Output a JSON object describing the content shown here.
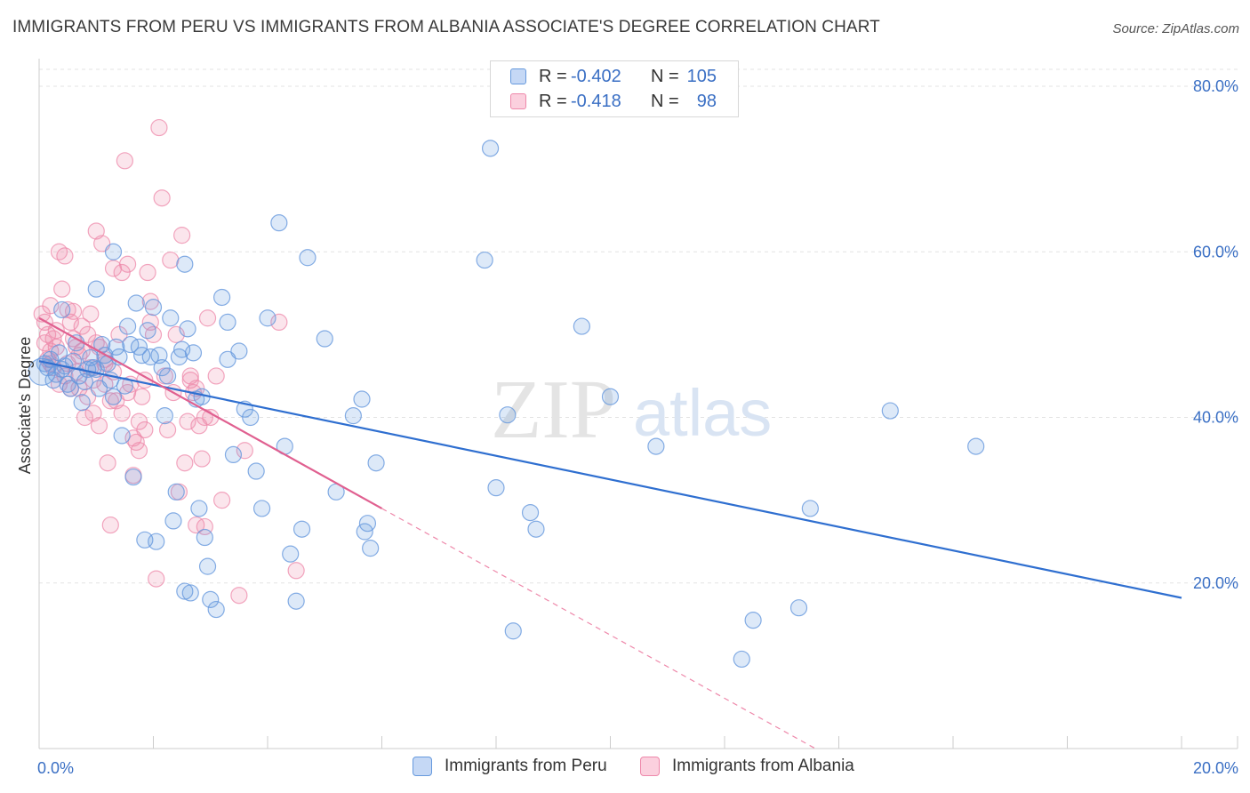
{
  "title": "IMMIGRANTS FROM PERU VS IMMIGRANTS FROM ALBANIA ASSOCIATE'S DEGREE CORRELATION CHART",
  "source": "Source: ZipAtlas.com",
  "watermark": {
    "zip": "ZIP",
    "atlas": "atlas"
  },
  "legend": {
    "r_label": "R =",
    "n_label": "N =",
    "rows": [
      {
        "series": "Immigrants from Peru",
        "r": "-0.402",
        "n": "105",
        "color": "#6699dd"
      },
      {
        "series": "Immigrants from Albania",
        "r": "-0.418",
        "n": "98",
        "color": "#ee88aa"
      }
    ]
  },
  "chart_data": {
    "type": "scatter",
    "title": "IMMIGRANTS FROM PERU VS IMMIGRANTS FROM ALBANIA ASSOCIATE'S DEGREE CORRELATION CHART",
    "xlabel": "",
    "ylabel": "Associate's Degree",
    "xlim": [
      0,
      20
    ],
    "ylim": [
      0,
      82
    ],
    "x_tick_labels": [
      "0.0%",
      "20.0%"
    ],
    "y_ticks": [
      20,
      40,
      60,
      80
    ],
    "y_tick_labels": [
      "20.0%",
      "40.0%",
      "60.0%",
      "80.0%"
    ],
    "grid": true,
    "legend_position": "top-center",
    "colors": {
      "peru": "#6699dd",
      "peru_line": "#2f6fd0",
      "albania": "#ee88aa",
      "albania_line": "#e06090"
    },
    "series": [
      {
        "name": "Immigrants from Peru",
        "trend": {
          "x": [
            0.0,
            20.0
          ],
          "y": [
            46.8,
            18.2
          ]
        },
        "points": [
          [
            0.05,
            45.5
          ],
          [
            0.1,
            46.5
          ],
          [
            0.15,
            46.0
          ],
          [
            0.2,
            47.0
          ],
          [
            0.25,
            44.5
          ],
          [
            0.3,
            45.2
          ],
          [
            0.35,
            47.8
          ],
          [
            0.4,
            45.8
          ],
          [
            0.45,
            46.2
          ],
          [
            0.5,
            44.0
          ],
          [
            0.55,
            43.5
          ],
          [
            0.6,
            46.8
          ],
          [
            0.65,
            49.0
          ],
          [
            0.7,
            45.0
          ],
          [
            0.75,
            41.8
          ],
          [
            0.8,
            44.3
          ],
          [
            0.85,
            45.8
          ],
          [
            0.9,
            47.2
          ],
          [
            0.95,
            46.0
          ],
          [
            1.0,
            45.8
          ],
          [
            1.05,
            43.5
          ],
          [
            1.1,
            48.8
          ],
          [
            1.15,
            47.5
          ],
          [
            1.2,
            46.5
          ],
          [
            1.25,
            44.5
          ],
          [
            1.3,
            42.5
          ],
          [
            1.35,
            48.5
          ],
          [
            1.4,
            47.3
          ],
          [
            1.45,
            37.8
          ],
          [
            1.5,
            43.8
          ],
          [
            1.55,
            51.0
          ],
          [
            1.6,
            48.8
          ],
          [
            1.65,
            32.8
          ],
          [
            1.7,
            53.8
          ],
          [
            1.75,
            48.5
          ],
          [
            1.8,
            47.5
          ],
          [
            1.85,
            25.2
          ],
          [
            1.9,
            50.5
          ],
          [
            1.95,
            47.3
          ],
          [
            2.0,
            53.3
          ],
          [
            2.05,
            25.0
          ],
          [
            2.1,
            47.5
          ],
          [
            2.15,
            46.0
          ],
          [
            2.2,
            40.2
          ],
          [
            2.25,
            45.0
          ],
          [
            2.3,
            52.0
          ],
          [
            2.35,
            27.5
          ],
          [
            2.4,
            31.0
          ],
          [
            2.45,
            47.3
          ],
          [
            2.5,
            48.2
          ],
          [
            2.55,
            19.0
          ],
          [
            2.6,
            50.7
          ],
          [
            2.65,
            18.8
          ],
          [
            2.7,
            47.8
          ],
          [
            2.75,
            42.2
          ],
          [
            2.8,
            29.0
          ],
          [
            2.85,
            42.5
          ],
          [
            2.9,
            25.5
          ],
          [
            2.95,
            22.0
          ],
          [
            3.0,
            18.0
          ],
          [
            3.1,
            16.8
          ],
          [
            3.2,
            54.5
          ],
          [
            3.3,
            47.0
          ],
          [
            3.4,
            35.5
          ],
          [
            3.5,
            48.0
          ],
          [
            3.6,
            41.0
          ],
          [
            3.7,
            40.0
          ],
          [
            3.8,
            33.5
          ],
          [
            3.9,
            29.0
          ],
          [
            4.0,
            52.0
          ],
          [
            4.2,
            63.5
          ],
          [
            4.3,
            36.5
          ],
          [
            4.4,
            23.5
          ],
          [
            4.5,
            17.8
          ],
          [
            4.6,
            26.5
          ],
          [
            4.7,
            59.3
          ],
          [
            5.0,
            49.5
          ],
          [
            5.2,
            31.0
          ],
          [
            5.5,
            40.2
          ],
          [
            5.65,
            42.2
          ],
          [
            5.7,
            26.2
          ],
          [
            5.8,
            24.2
          ],
          [
            5.9,
            34.5
          ],
          [
            5.75,
            27.2
          ],
          [
            7.8,
            59.0
          ],
          [
            7.9,
            72.5
          ],
          [
            8.0,
            31.5
          ],
          [
            8.2,
            40.3
          ],
          [
            8.3,
            14.2
          ],
          [
            8.6,
            28.5
          ],
          [
            8.7,
            26.5
          ],
          [
            9.5,
            51.0
          ],
          [
            10.0,
            42.5
          ],
          [
            10.8,
            36.5
          ],
          [
            12.5,
            15.5
          ],
          [
            12.3,
            10.8
          ],
          [
            13.3,
            17.0
          ],
          [
            13.5,
            29.0
          ],
          [
            14.9,
            40.8
          ],
          [
            16.4,
            36.5
          ],
          [
            0.4,
            53.0
          ],
          [
            1.0,
            55.5
          ],
          [
            1.3,
            60.0
          ],
          [
            2.55,
            58.5
          ],
          [
            3.3,
            51.5
          ]
        ]
      },
      {
        "name": "Immigrants from Albania",
        "trend": {
          "x": [
            0.0,
            6.0
          ],
          "y": [
            52.0,
            29.0
          ]
        },
        "trend_extension": {
          "x": [
            6.0,
            20.0
          ],
          "y": [
            29.0,
            -24.5
          ]
        },
        "points": [
          [
            0.05,
            52.5
          ],
          [
            0.1,
            51.5
          ],
          [
            0.15,
            50.0
          ],
          [
            0.2,
            53.5
          ],
          [
            0.25,
            49.5
          ],
          [
            0.3,
            48.5
          ],
          [
            0.35,
            60.0
          ],
          [
            0.4,
            55.5
          ],
          [
            0.45,
            59.5
          ],
          [
            0.5,
            46.5
          ],
          [
            0.55,
            51.5
          ],
          [
            0.6,
            52.8
          ],
          [
            0.65,
            45.5
          ],
          [
            0.7,
            43.5
          ],
          [
            0.75,
            48.0
          ],
          [
            0.8,
            40.0
          ],
          [
            0.85,
            42.5
          ],
          [
            0.9,
            46.0
          ],
          [
            0.95,
            44.5
          ],
          [
            1.0,
            62.5
          ],
          [
            1.05,
            48.5
          ],
          [
            1.1,
            61.0
          ],
          [
            1.15,
            47.0
          ],
          [
            1.2,
            34.5
          ],
          [
            1.25,
            27.0
          ],
          [
            1.3,
            58.0
          ],
          [
            1.35,
            42.0
          ],
          [
            1.4,
            50.0
          ],
          [
            1.45,
            57.5
          ],
          [
            1.5,
            71.0
          ],
          [
            1.55,
            58.5
          ],
          [
            1.6,
            44.0
          ],
          [
            1.65,
            33.0
          ],
          [
            1.7,
            37.0
          ],
          [
            1.75,
            39.5
          ],
          [
            1.8,
            42.5
          ],
          [
            1.85,
            44.5
          ],
          [
            1.9,
            57.5
          ],
          [
            1.95,
            54.0
          ],
          [
            2.0,
            50.0
          ],
          [
            2.05,
            20.5
          ],
          [
            2.1,
            75.0
          ],
          [
            2.15,
            66.5
          ],
          [
            2.2,
            45.0
          ],
          [
            2.25,
            38.5
          ],
          [
            2.3,
            59.0
          ],
          [
            2.35,
            43.0
          ],
          [
            2.4,
            50.0
          ],
          [
            2.45,
            31.0
          ],
          [
            2.5,
            62.0
          ],
          [
            2.55,
            34.5
          ],
          [
            2.6,
            39.5
          ],
          [
            2.65,
            44.5
          ],
          [
            2.7,
            43.0
          ],
          [
            2.75,
            27.0
          ],
          [
            2.8,
            39.0
          ],
          [
            2.85,
            35.0
          ],
          [
            2.9,
            26.8
          ],
          [
            2.95,
            52.0
          ],
          [
            3.0,
            40.0
          ],
          [
            3.2,
            30.0
          ],
          [
            3.5,
            18.5
          ],
          [
            3.6,
            36.0
          ],
          [
            4.2,
            51.5
          ],
          [
            4.5,
            21.5
          ],
          [
            0.2,
            48.0
          ],
          [
            0.3,
            50.5
          ],
          [
            0.5,
            53.0
          ],
          [
            0.6,
            49.5
          ],
          [
            0.7,
            47.5
          ],
          [
            0.9,
            52.5
          ],
          [
            1.0,
            49.0
          ],
          [
            1.15,
            46.5
          ],
          [
            1.3,
            45.5
          ],
          [
            1.45,
            40.5
          ],
          [
            1.55,
            43.0
          ],
          [
            1.65,
            37.5
          ],
          [
            1.75,
            36.0
          ],
          [
            1.85,
            38.5
          ],
          [
            1.95,
            51.5
          ],
          [
            0.15,
            47.0
          ],
          [
            0.25,
            46.0
          ],
          [
            0.35,
            44.0
          ],
          [
            0.45,
            45.0
          ],
          [
            0.55,
            43.5
          ],
          [
            0.65,
            48.5
          ],
          [
            0.75,
            51.0
          ],
          [
            0.85,
            50.0
          ],
          [
            0.95,
            40.5
          ],
          [
            1.05,
            39.0
          ],
          [
            1.15,
            44.0
          ],
          [
            1.25,
            42.0
          ],
          [
            2.65,
            45.0
          ],
          [
            2.75,
            43.5
          ],
          [
            2.9,
            40.0
          ],
          [
            3.1,
            45.0
          ],
          [
            0.1,
            49.0
          ],
          [
            0.2,
            46.5
          ]
        ]
      }
    ]
  },
  "bottom_legend": [
    "Immigrants from Peru",
    "Immigrants from Albania"
  ]
}
